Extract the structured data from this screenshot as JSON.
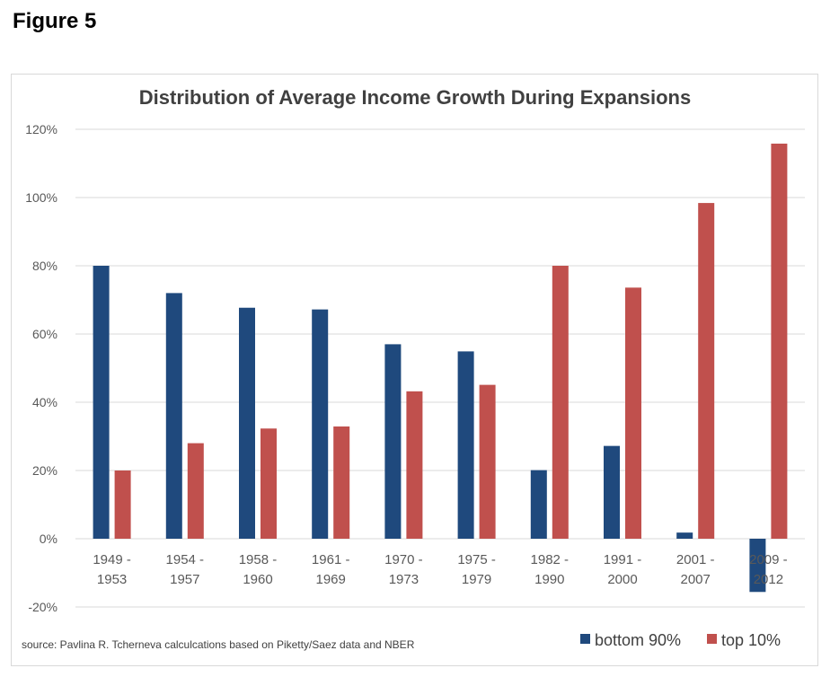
{
  "figure_label": "Figure 5",
  "chart_data": {
    "type": "bar",
    "title": "Distribution of Average Income Growth During Expansions",
    "xlabel": "",
    "ylabel": "",
    "ylim": [
      -20,
      120
    ],
    "yticks": [
      -20,
      0,
      20,
      40,
      60,
      80,
      100,
      120
    ],
    "ytick_labels": [
      "-20%",
      "0%",
      "20%",
      "40%",
      "60%",
      "80%",
      "100%",
      "120%"
    ],
    "grid": true,
    "legend_position": "bottom-right",
    "categories": [
      [
        "1949 -",
        "1953"
      ],
      [
        "1954 -",
        "1957"
      ],
      [
        "1958 -",
        "1960"
      ],
      [
        "1961 -",
        "1969"
      ],
      [
        "1970 -",
        "1973"
      ],
      [
        "1975 -",
        "1979"
      ],
      [
        "1982 -",
        "1990"
      ],
      [
        "1991 -",
        "2000"
      ],
      [
        "2001 -",
        "2007"
      ],
      [
        "2009 -",
        "2012"
      ]
    ],
    "series": [
      {
        "name": "bottom 90%",
        "color": "#1f497d",
        "values": [
          80,
          72,
          67.7,
          67.2,
          57,
          54.9,
          20.1,
          27.2,
          1.8,
          -15.6
        ]
      },
      {
        "name": "top 10%",
        "color": "#c0504d",
        "values": [
          20,
          28,
          32.3,
          32.9,
          43.2,
          45.1,
          80,
          73.6,
          98.4,
          115.8
        ]
      }
    ],
    "source": "source: Pavlina R. Tcherneva calculcations based on Piketty/Saez data and NBER"
  }
}
